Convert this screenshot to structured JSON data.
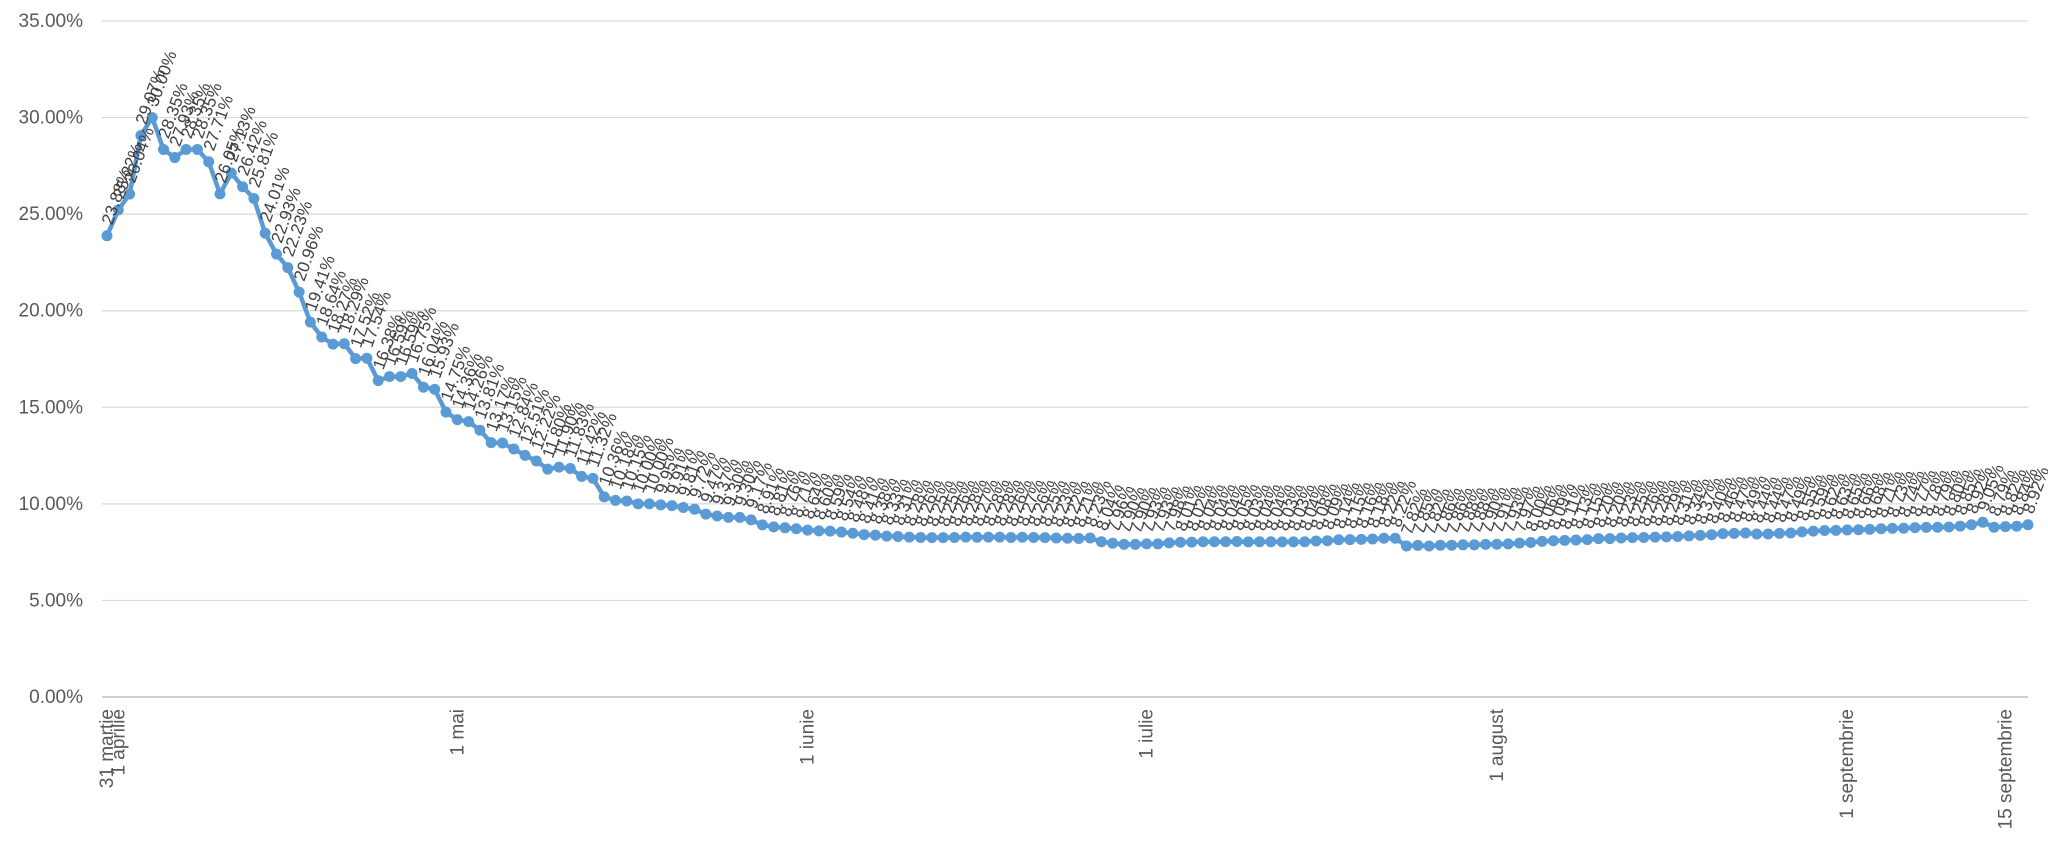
{
  "chart_data": {
    "type": "line",
    "y_format": "percent_2dp",
    "ylim": [
      0,
      35
    ],
    "y_ticks": [
      "0.00%",
      "5.00%",
      "10.00%",
      "15.00%",
      "20.00%",
      "25.00%",
      "30.00%",
      "35.00%"
    ],
    "grid": true,
    "line_color": "#5b9bd5",
    "x_tick_labels": [
      {
        "label": "31 martie",
        "index": 0
      },
      {
        "label": "1 aprilie",
        "index": 1
      },
      {
        "label": "1 mai",
        "index": 31
      },
      {
        "label": "1 iunie",
        "index": 62
      },
      {
        "label": "1 iulie",
        "index": 92
      },
      {
        "label": "1 august",
        "index": 123
      },
      {
        "label": "1 septembrie",
        "index": 154
      },
      {
        "label": "15 septembrie",
        "index": 168
      }
    ],
    "series": [
      {
        "values": [
          23.88,
          25.22,
          26.04,
          29.07,
          30.0,
          28.35,
          27.93,
          28.35,
          28.35,
          27.71,
          26.05,
          27.13,
          26.42,
          25.81,
          24.01,
          22.93,
          22.23,
          20.96,
          19.41,
          18.64,
          18.27,
          18.29,
          17.52,
          17.54,
          16.38,
          16.59,
          16.59,
          16.75,
          16.04,
          15.93,
          14.75,
          14.36,
          14.26,
          13.81,
          13.17,
          13.15,
          12.84,
          12.51,
          12.22,
          11.8,
          11.9,
          11.83,
          11.42,
          11.32,
          10.36,
          10.18,
          10.15,
          10.0,
          10.0,
          9.95,
          9.91,
          9.81,
          9.72,
          9.47,
          9.37,
          9.3,
          9.3,
          9.17,
          8.91,
          8.81,
          8.76,
          8.71,
          8.64,
          8.6,
          8.59,
          8.54,
          8.48,
          8.41,
          8.38,
          8.33,
          8.31,
          8.28,
          8.26,
          8.25,
          8.25,
          8.26,
          8.28,
          8.27,
          8.28,
          8.28,
          8.26,
          8.27,
          8.26,
          8.25,
          8.23,
          8.22,
          8.21,
          8.23,
          8.04,
          7.96,
          7.9,
          7.9,
          7.93,
          7.93,
          7.98,
          8.01,
          8.02,
          8.04,
          8.04,
          8.04,
          8.05,
          8.03,
          8.04,
          8.04,
          8.03,
          8.03,
          8.04,
          8.08,
          8.09,
          8.14,
          8.15,
          8.16,
          8.18,
          8.22,
          8.22,
          7.82,
          7.85,
          7.82,
          7.86,
          7.86,
          7.88,
          7.88,
          7.9,
          7.91,
          7.93,
          7.97,
          8.0,
          8.06,
          8.09,
          8.11,
          8.13,
          8.15,
          8.2,
          8.2,
          8.23,
          8.25,
          8.26,
          8.28,
          8.29,
          8.31,
          8.34,
          8.37,
          8.4,
          8.46,
          8.47,
          8.49,
          8.44,
          8.44,
          8.47,
          8.49,
          8.55,
          8.59,
          8.62,
          8.63,
          8.65,
          8.66,
          8.68,
          8.71,
          8.73,
          8.74,
          8.77,
          8.78,
          8.79,
          8.8,
          8.85,
          8.92,
          9.05,
          8.79,
          8.82,
          8.84,
          8.92
        ]
      }
    ]
  }
}
